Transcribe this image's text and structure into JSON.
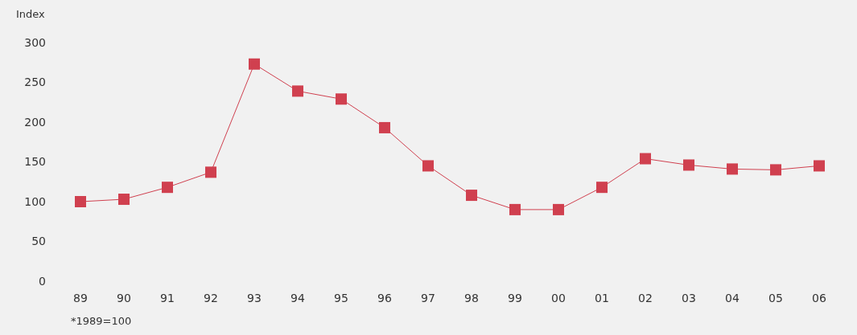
{
  "chart_data": {
    "type": "line",
    "ylabel": "Index",
    "annotations": [
      "*1989=100"
    ],
    "categories": [
      "89",
      "90",
      "91",
      "92",
      "93",
      "94",
      "95",
      "96",
      "97",
      "98",
      "99",
      "00",
      "01",
      "02",
      "03",
      "04",
      "05",
      "06"
    ],
    "series": [
      {
        "color": "#d0404f",
        "values": [
          100,
          103,
          118,
          137,
          273,
          239,
          229,
          193,
          145,
          108,
          90,
          90,
          118,
          154,
          146,
          141,
          140,
          145
        ]
      }
    ],
    "ylim": [
      0,
      300
    ],
    "yticks": [
      0,
      50,
      100,
      150,
      200,
      250,
      300
    ],
    "marker": "square",
    "grid": false
  }
}
